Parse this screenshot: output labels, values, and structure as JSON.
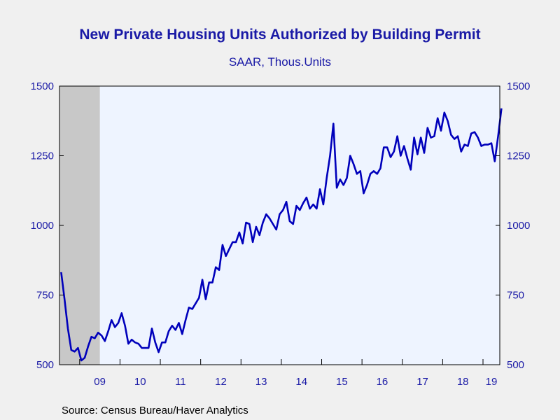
{
  "chart_data": {
    "type": "line",
    "title": "New Private Housing Units Authorized by Building Permit",
    "subtitle": "SAAR, Thous.Units",
    "source": "Source:  Census Bureau/Haver Analytics",
    "ylim": [
      500,
      1500
    ],
    "y_ticks": [
      500,
      750,
      1000,
      1250,
      1500
    ],
    "y_tick_labels": [
      "500",
      "750",
      "1000",
      "1250",
      "1500"
    ],
    "x_range": [
      "2008-07",
      "2019-05"
    ],
    "x_tick_labels": [
      "09",
      "10",
      "11",
      "12",
      "13",
      "14",
      "15",
      "16",
      "17",
      "18",
      "19"
    ],
    "x_tick_years": [
      2009,
      2010,
      2011,
      2012,
      2013,
      2014,
      2015,
      2016,
      2017,
      2018,
      2019
    ],
    "recession_shading": {
      "start": "2008-07",
      "end": "2009-06",
      "color": "#c8c8c8"
    },
    "plot_background": "#eef4ff",
    "line_color": "#0000bb",
    "series": [
      {
        "start": "2008-07",
        "frequency": "monthly",
        "values": [
          832,
          735,
          630,
          553,
          547,
          560,
          515,
          525,
          565,
          600,
          595,
          615,
          605,
          585,
          620,
          660,
          635,
          650,
          685,
          640,
          575,
          590,
          580,
          575,
          560,
          560,
          560,
          630,
          580,
          545,
          580,
          580,
          620,
          640,
          625,
          650,
          610,
          660,
          705,
          700,
          720,
          740,
          805,
          735,
          795,
          795,
          850,
          840,
          930,
          890,
          915,
          940,
          940,
          975,
          935,
          1010,
          1005,
          940,
          995,
          965,
          1010,
          1040,
          1025,
          1005,
          985,
          1040,
          1055,
          1085,
          1015,
          1005,
          1070,
          1055,
          1080,
          1100,
          1060,
          1075,
          1060,
          1130,
          1075,
          1170,
          1250,
          1365,
          1135,
          1165,
          1145,
          1170,
          1250,
          1220,
          1185,
          1195,
          1115,
          1145,
          1185,
          1195,
          1185,
          1205,
          1280,
          1280,
          1245,
          1265,
          1320,
          1250,
          1285,
          1240,
          1200,
          1315,
          1255,
          1315,
          1260,
          1350,
          1315,
          1320,
          1385,
          1340,
          1405,
          1375,
          1325,
          1310,
          1320,
          1265,
          1290,
          1285,
          1330,
          1335,
          1315,
          1285,
          1290,
          1290,
          1295,
          1230,
          1320,
          1420
        ]
      }
    ]
  }
}
